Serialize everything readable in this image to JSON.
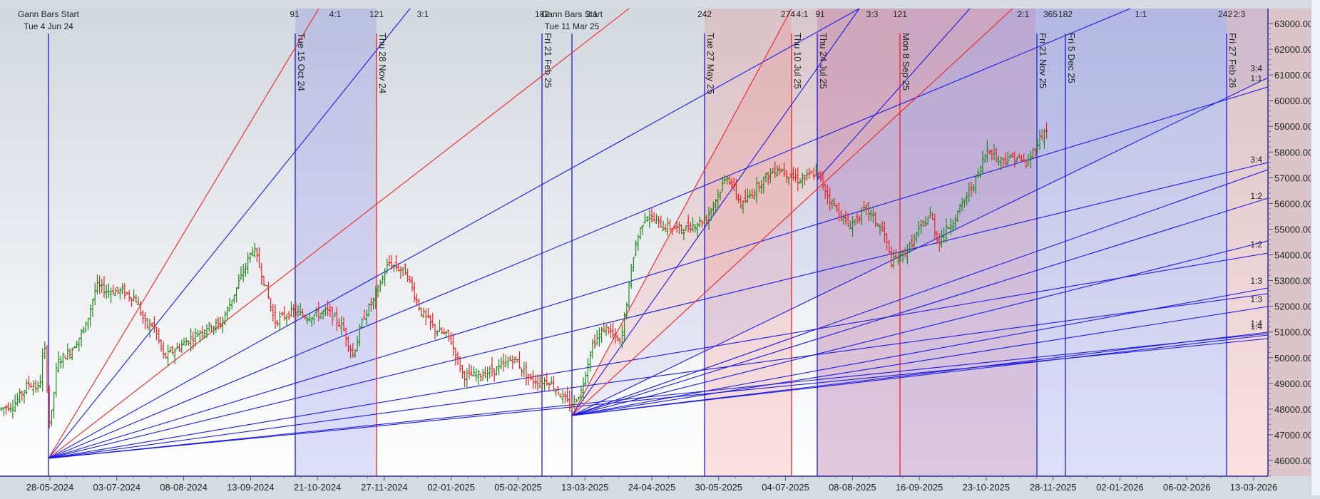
{
  "chart_data": {
    "type": "bar",
    "subtype": "ohlc-with-gann-fans",
    "title": "",
    "xlabel": "",
    "ylabel": "",
    "ylim": [
      45500,
      63500
    ],
    "y_ticks": [
      "63000.00",
      "62000.00",
      "61000.00",
      "60000.00",
      "59000.00",
      "58000.00",
      "57000.00",
      "56000.00",
      "55000.00",
      "54000.00",
      "53000.00",
      "52000.00",
      "51000.00",
      "50000.00",
      "49000.00",
      "48000.00",
      "47000.00",
      "46000.00"
    ],
    "x_ticks": [
      "28-05-2024",
      "03-07-2024",
      "08-08-2024",
      "13-09-2024",
      "21-10-2024",
      "27-11-2024",
      "02-01-2025",
      "05-02-2025",
      "13-03-2025",
      "24-04-2025",
      "30-05-2025",
      "04-07-2025",
      "08-08-2025",
      "16-09-2025",
      "23-10-2025",
      "28-11-2025",
      "02-01-2026",
      "06-02-2026",
      "13-03-2026"
    ],
    "grid": false,
    "colors": {
      "up_bar": "#1e8a1e",
      "down_bar": "#ee2222",
      "fan_blue": "#1a1ae6",
      "fan_red": "#ee2222",
      "band_blue": "rgba(110,110,230,0.22)",
      "band_red": "rgba(240,120,120,0.22)",
      "axis": "#2a2aa8",
      "label_text": "#222222"
    },
    "gann_starts": [
      {
        "label": "Gann Bars Start",
        "date": "Tue 4 Jun 24",
        "price": 46100
      },
      {
        "label": "Gann Bars Start",
        "date": "Tue 11 Mar 25",
        "price": 47750
      }
    ],
    "vertical_markers": [
      {
        "date": "Tue 15 Oct 24",
        "color": "blue",
        "top_label": "91"
      },
      {
        "date": "Thu 28 Nov 24",
        "color": "red",
        "top_label": "121"
      },
      {
        "date": "Fri 21 Feb 25",
        "color": "blue",
        "top_label": "182"
      },
      {
        "date": "Tue 27 May 25",
        "color": "blue",
        "top_label": "242"
      },
      {
        "date": "Thu 10 Jul 25",
        "color": "red",
        "top_label": "274"
      },
      {
        "date": "Thu 24 Jul 25",
        "color": "blue",
        "top_label": "91"
      },
      {
        "date": "Mon 8 Sep 25",
        "color": "red",
        "top_label": "121"
      },
      {
        "date": "Fri 21 Nov 25",
        "color": "blue",
        "top_label": "365"
      },
      {
        "date": "Fri 5 Dec 25",
        "color": "blue",
        "top_label": "182"
      },
      {
        "date": "Fri 27 Feb 26",
        "color": "blue",
        "top_label": "242"
      }
    ],
    "fan_ratio_labels_top": [
      "4:1",
      "3:1",
      "2:1",
      "4:1",
      "3:3",
      "2:1",
      "1:1",
      "2:3"
    ],
    "fan_ratio_labels_right": [
      "3:4",
      "1:1",
      "3:4",
      "1:2",
      "1:2",
      "1:3",
      "1:3",
      "1:4"
    ],
    "price_range_observed": {
      "low": 47000,
      "high": 59400
    }
  },
  "labels": {
    "start1_title": "Gann Bars Start",
    "start1_date": "Tue 4 Jun 24",
    "start2_title": "Gann Bars Start",
    "start2_date": "Tue 11 Mar 25"
  }
}
